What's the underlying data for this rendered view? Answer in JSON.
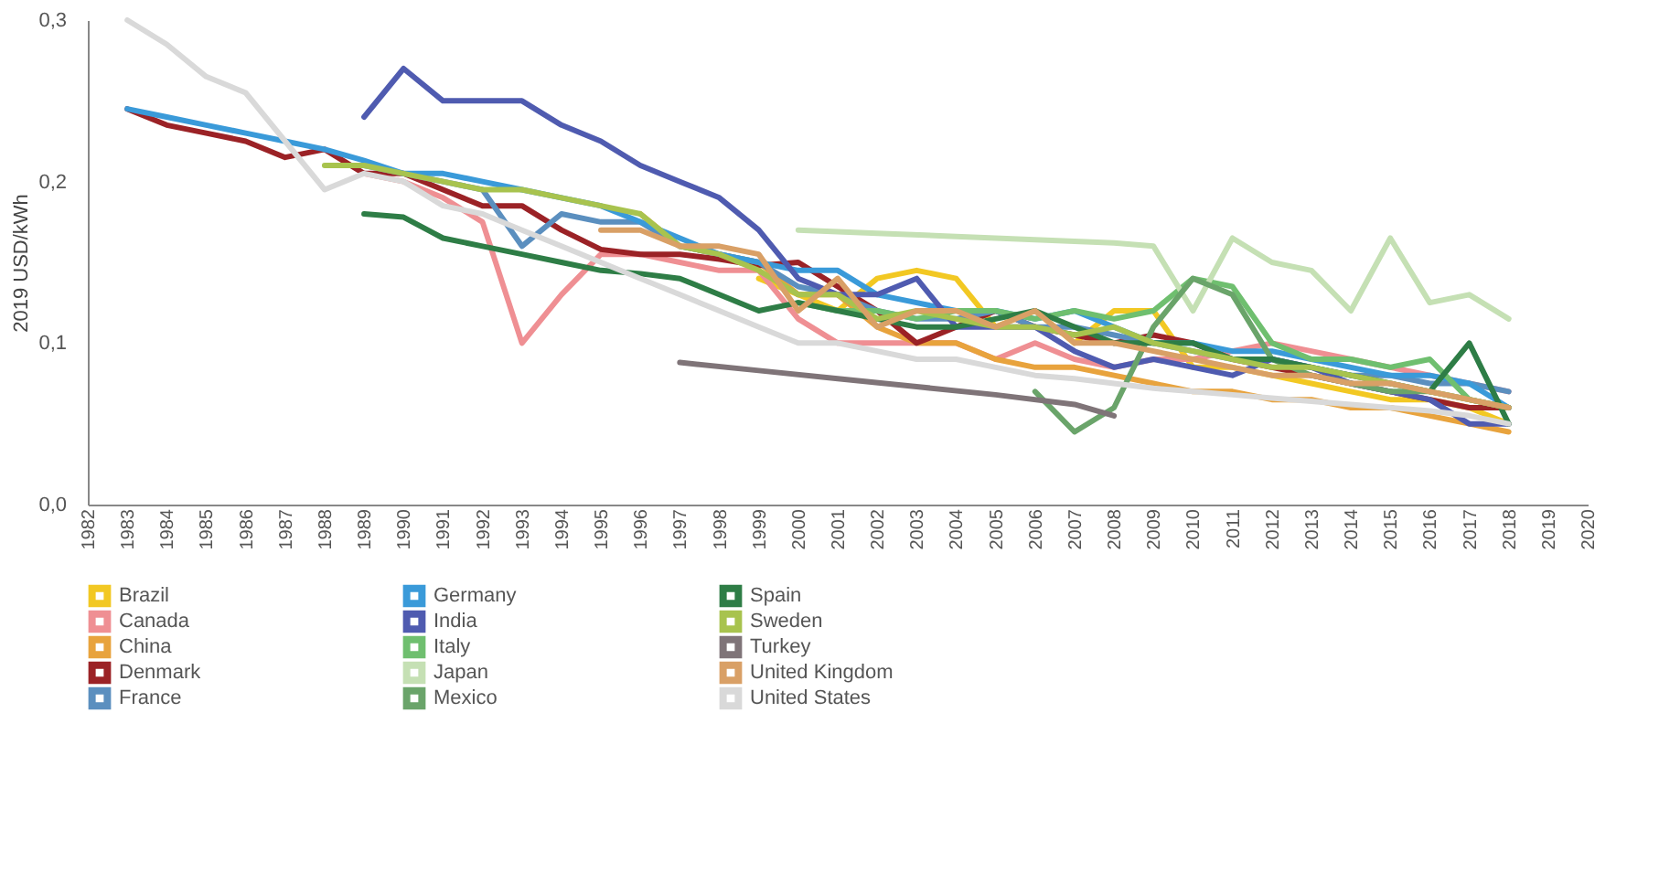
{
  "chart_data": {
    "type": "line",
    "ylabel": "2019 USD/kWh",
    "xlim": [
      1982,
      2020
    ],
    "xticks": [
      1982,
      1983,
      1984,
      1985,
      1986,
      1987,
      1988,
      1989,
      1990,
      1991,
      1992,
      1993,
      1994,
      1995,
      1996,
      1997,
      1998,
      1999,
      2000,
      2001,
      2002,
      2003,
      2004,
      2005,
      2006,
      2007,
      2008,
      2009,
      2010,
      2011,
      2012,
      2013,
      2014,
      2015,
      2016,
      2017,
      2018,
      2019,
      2020
    ],
    "ylim": [
      0,
      0.3
    ],
    "yticks": [
      {
        "value": 0,
        "label": "0,0"
      },
      {
        "value": 0.1,
        "label": "0,1"
      },
      {
        "value": 0.2,
        "label": "0,2"
      },
      {
        "value": 0.3,
        "label": "0,3"
      }
    ],
    "grid": false,
    "legend": "bottom",
    "marker": "none",
    "line_style": "solid",
    "series": [
      {
        "name": "Brazil",
        "color": "#f2c823",
        "x": [
          1999,
          2000,
          2001,
          2002,
          2003,
          2004,
          2005,
          2006,
          2007,
          2008,
          2009,
          2010,
          2011,
          2012,
          2013,
          2014,
          2015,
          2016,
          2017,
          2018
        ],
        "values": [
          0.14,
          0.13,
          0.12,
          0.14,
          0.145,
          0.14,
          0.11,
          0.12,
          0.1,
          0.12,
          0.12,
          0.085,
          0.085,
          0.08,
          0.075,
          0.07,
          0.065,
          0.065,
          0.06,
          0.05
        ]
      },
      {
        "name": "Canada",
        "color": "#ef8f93",
        "x": [
          1989,
          1990,
          1991,
          1992,
          1993,
          1994,
          1995,
          1996,
          1997,
          1998,
          1999,
          2000,
          2001,
          2002,
          2003,
          2004,
          2005,
          2006,
          2007,
          2008,
          2009,
          2010,
          2011,
          2012,
          2013,
          2014,
          2015,
          2016,
          2017,
          2018
        ],
        "values": [
          0.205,
          0.2,
          0.19,
          0.175,
          0.1,
          0.13,
          0.155,
          0.155,
          0.15,
          0.145,
          0.145,
          0.115,
          0.1,
          0.1,
          0.1,
          0.1,
          0.09,
          0.1,
          0.09,
          0.085,
          0.09,
          0.09,
          0.095,
          0.1,
          0.095,
          0.09,
          0.085,
          0.08,
          0.075,
          0.07
        ]
      },
      {
        "name": "China",
        "color": "#e8a33d",
        "x": [
          1996,
          1997,
          1998,
          1999,
          2000,
          2001,
          2002,
          2003,
          2004,
          2005,
          2006,
          2007,
          2008,
          2009,
          2010,
          2011,
          2012,
          2013,
          2014,
          2015,
          2016,
          2017,
          2018
        ],
        "values": [
          0.18,
          0.16,
          0.155,
          0.15,
          0.13,
          0.13,
          0.11,
          0.1,
          0.1,
          0.09,
          0.085,
          0.085,
          0.08,
          0.075,
          0.07,
          0.07,
          0.065,
          0.065,
          0.06,
          0.06,
          0.055,
          0.05,
          0.045
        ]
      },
      {
        "name": "Denmark",
        "color": "#9b2226",
        "x": [
          1983,
          1984,
          1985,
          1986,
          1987,
          1988,
          1989,
          1990,
          1991,
          1992,
          1993,
          1994,
          1995,
          1996,
          1997,
          1998,
          1999,
          2000,
          2001,
          2002,
          2003,
          2004,
          2005,
          2006,
          2007,
          2008,
          2009,
          2010,
          2011,
          2012,
          2013,
          2014,
          2015,
          2016,
          2017,
          2018
        ],
        "values": [
          0.245,
          0.235,
          0.23,
          0.225,
          0.215,
          0.22,
          0.205,
          0.205,
          0.195,
          0.185,
          0.185,
          0.17,
          0.158,
          0.155,
          0.155,
          0.152,
          0.148,
          0.15,
          0.135,
          0.12,
          0.1,
          0.11,
          0.12,
          0.11,
          0.105,
          0.1,
          0.105,
          0.1,
          0.09,
          0.085,
          0.08,
          0.075,
          0.07,
          0.065,
          0.06,
          0.06
        ]
      },
      {
        "name": "France",
        "color": "#5b8fbf",
        "x": [
          1989,
          1990,
          1991,
          1992,
          1993,
          1994,
          1995,
          1996,
          1997,
          1998,
          1999,
          2000,
          2001,
          2002,
          2003,
          2004,
          2005,
          2006,
          2007,
          2008,
          2009,
          2010,
          2011,
          2012,
          2013,
          2014,
          2015,
          2016,
          2017,
          2018
        ],
        "values": [
          0.21,
          0.205,
          0.2,
          0.195,
          0.16,
          0.18,
          0.175,
          0.175,
          0.16,
          0.155,
          0.15,
          0.135,
          0.13,
          0.12,
          0.115,
          0.115,
          0.12,
          0.11,
          0.11,
          0.105,
          0.1,
          0.095,
          0.09,
          0.09,
          0.085,
          0.08,
          0.08,
          0.075,
          0.075,
          0.07
        ]
      },
      {
        "name": "Germany",
        "color": "#3a9ad9",
        "x": [
          1983,
          1984,
          1985,
          1986,
          1987,
          1988,
          1989,
          1990,
          1991,
          1992,
          1993,
          1994,
          1995,
          1996,
          1997,
          1998,
          1999,
          2000,
          2001,
          2002,
          2003,
          2004,
          2005,
          2006,
          2007,
          2008,
          2009,
          2010,
          2011,
          2012,
          2013,
          2014,
          2015,
          2016,
          2017,
          2018
        ],
        "values": [
          0.245,
          0.24,
          0.235,
          0.23,
          0.225,
          0.22,
          0.213,
          0.205,
          0.205,
          0.2,
          0.195,
          0.19,
          0.185,
          0.175,
          0.165,
          0.155,
          0.15,
          0.145,
          0.145,
          0.13,
          0.125,
          0.12,
          0.12,
          0.115,
          0.12,
          0.11,
          0.1,
          0.1,
          0.095,
          0.095,
          0.09,
          0.085,
          0.08,
          0.08,
          0.075,
          0.06
        ]
      },
      {
        "name": "India",
        "color": "#4f5bb0",
        "x": [
          1989,
          1990,
          1991,
          1992,
          1993,
          1994,
          1995,
          1996,
          1997,
          1998,
          1999,
          2000,
          2001,
          2002,
          2003,
          2004,
          2005,
          2006,
          2007,
          2008,
          2009,
          2010,
          2011,
          2012,
          2013,
          2014,
          2015,
          2016,
          2017,
          2018
        ],
        "values": [
          0.24,
          0.27,
          0.25,
          0.25,
          0.25,
          0.235,
          0.225,
          0.21,
          0.2,
          0.19,
          0.17,
          0.14,
          0.13,
          0.13,
          0.14,
          0.11,
          0.11,
          0.11,
          0.095,
          0.085,
          0.09,
          0.085,
          0.08,
          0.09,
          0.085,
          0.075,
          0.07,
          0.065,
          0.05,
          0.05
        ]
      },
      {
        "name": "Italy",
        "color": "#6fbf6f",
        "x": [
          2000,
          2001,
          2002,
          2003,
          2004,
          2005,
          2006,
          2007,
          2008,
          2009,
          2010,
          2011,
          2012,
          2013,
          2014,
          2015,
          2016,
          2017,
          2018
        ],
        "values": [
          0.125,
          0.12,
          0.12,
          0.115,
          0.12,
          0.12,
          0.115,
          0.12,
          0.115,
          0.12,
          0.14,
          0.135,
          0.1,
          0.09,
          0.09,
          0.085,
          0.09,
          0.065,
          0.06
        ]
      },
      {
        "name": "Japan",
        "color": "#c5e0b4",
        "x": [
          2000,
          2002,
          2004,
          2006,
          2008,
          2009,
          2010,
          2011,
          2012,
          2013,
          2014,
          2015,
          2016,
          2017,
          2018
        ],
        "values": [
          0.17,
          0.168,
          0.166,
          0.164,
          0.162,
          0.16,
          0.12,
          0.165,
          0.15,
          0.145,
          0.12,
          0.165,
          0.125,
          0.13,
          0.115
        ]
      },
      {
        "name": "Mexico",
        "color": "#6aa46a",
        "x": [
          2006,
          2007,
          2008,
          2009,
          2010,
          2011,
          2012,
          2013,
          2014,
          2015,
          2016,
          2017,
          2018
        ],
        "values": [
          0.07,
          0.045,
          0.06,
          0.11,
          0.14,
          0.13,
          0.09,
          0.08,
          0.075,
          0.07,
          0.07,
          0.065,
          0.06
        ]
      },
      {
        "name": "Spain",
        "color": "#2e7d46",
        "x": [
          1989,
          1990,
          1991,
          1992,
          1993,
          1994,
          1995,
          1996,
          1997,
          1998,
          1999,
          2000,
          2001,
          2002,
          2003,
          2004,
          2005,
          2006,
          2007,
          2008,
          2009,
          2010,
          2011,
          2012,
          2013,
          2014,
          2015,
          2016,
          2017,
          2018
        ],
        "values": [
          0.18,
          0.178,
          0.165,
          0.16,
          0.155,
          0.15,
          0.145,
          0.143,
          0.14,
          0.13,
          0.12,
          0.125,
          0.12,
          0.115,
          0.11,
          0.11,
          0.115,
          0.12,
          0.11,
          0.1,
          0.1,
          0.1,
          0.09,
          0.09,
          0.085,
          0.08,
          0.075,
          0.07,
          0.1,
          0.05
        ]
      },
      {
        "name": "Sweden",
        "color": "#a8c34e",
        "x": [
          1988,
          1989,
          1990,
          1991,
          1992,
          1993,
          1994,
          1995,
          1996,
          1997,
          1998,
          1999,
          2000,
          2001,
          2002,
          2003,
          2004,
          2005,
          2006,
          2007,
          2008,
          2009,
          2010,
          2011,
          2012,
          2013,
          2014,
          2015,
          2016,
          2017,
          2018
        ],
        "values": [
          0.21,
          0.21,
          0.205,
          0.2,
          0.195,
          0.195,
          0.19,
          0.185,
          0.18,
          0.16,
          0.155,
          0.145,
          0.13,
          0.13,
          0.115,
          0.12,
          0.115,
          0.11,
          0.11,
          0.105,
          0.11,
          0.1,
          0.095,
          0.09,
          0.085,
          0.085,
          0.08,
          0.075,
          0.07,
          0.065,
          0.06
        ]
      },
      {
        "name": "Turkey",
        "color": "#7f7478",
        "x": [
          1997,
          1999,
          2001,
          2003,
          2005,
          2007,
          2008
        ],
        "values": [
          0.088,
          0.083,
          0.078,
          0.073,
          0.068,
          0.062,
          0.055
        ]
      },
      {
        "name": "United Kingdom",
        "color": "#d9a066",
        "x": [
          1995,
          1996,
          1997,
          1998,
          1999,
          2000,
          2001,
          2002,
          2003,
          2004,
          2005,
          2006,
          2007,
          2008,
          2009,
          2010,
          2011,
          2012,
          2013,
          2014,
          2015,
          2016,
          2017,
          2018
        ],
        "values": [
          0.17,
          0.17,
          0.16,
          0.16,
          0.155,
          0.12,
          0.14,
          0.11,
          0.12,
          0.12,
          0.11,
          0.12,
          0.1,
          0.1,
          0.095,
          0.09,
          0.085,
          0.08,
          0.08,
          0.075,
          0.075,
          0.07,
          0.065,
          0.06
        ]
      },
      {
        "name": "United States",
        "color": "#d9d9d9",
        "x": [
          1983,
          1984,
          1985,
          1986,
          1987,
          1988,
          1989,
          1990,
          1991,
          1992,
          1993,
          1994,
          1995,
          1996,
          1997,
          1998,
          1999,
          2000,
          2001,
          2002,
          2003,
          2004,
          2005,
          2006,
          2007,
          2008,
          2009,
          2010,
          2011,
          2012,
          2013,
          2014,
          2015,
          2016,
          2017,
          2018
        ],
        "values": [
          0.3,
          0.285,
          0.265,
          0.255,
          0.225,
          0.195,
          0.205,
          0.2,
          0.185,
          0.18,
          0.17,
          0.16,
          0.15,
          0.14,
          0.13,
          0.12,
          0.11,
          0.1,
          0.1,
          0.095,
          0.09,
          0.09,
          0.085,
          0.08,
          0.078,
          0.075,
          0.072,
          0.07,
          0.068,
          0.066,
          0.064,
          0.062,
          0.06,
          0.058,
          0.055,
          0.05
        ]
      }
    ]
  }
}
